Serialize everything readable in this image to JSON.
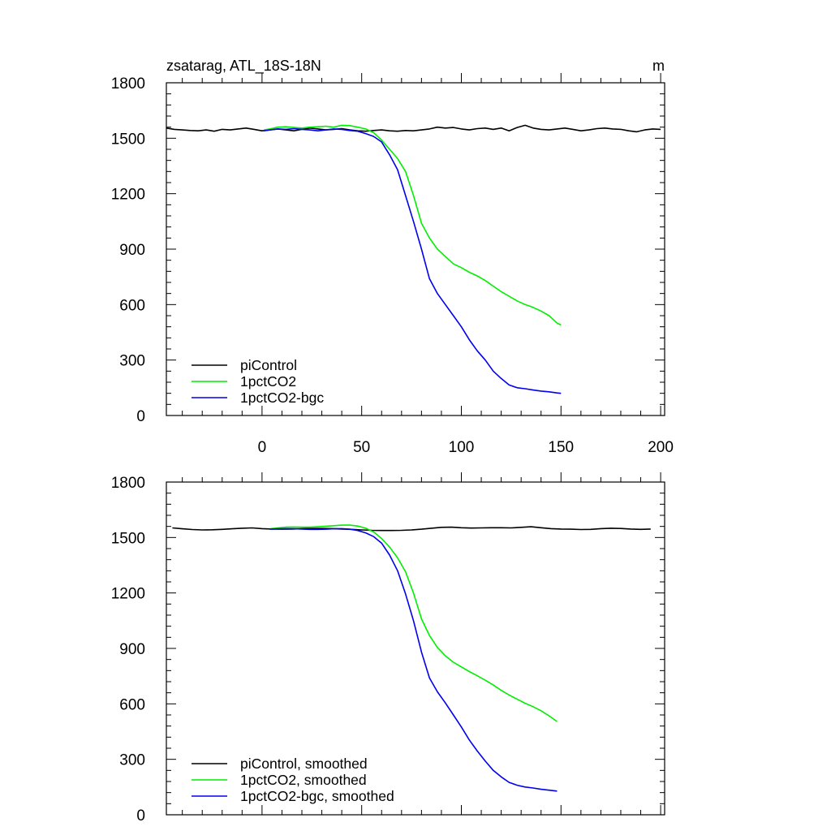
{
  "chart_data": [
    {
      "type": "line",
      "title": "zsatarag, ATL_18S-18N",
      "units": "m",
      "xlim": [
        -48,
        202
      ],
      "ylim": [
        0,
        1800
      ],
      "xticks": [
        0,
        50,
        100,
        150,
        200
      ],
      "xtick_labels": [
        "0",
        "50",
        "100",
        "150",
        "200"
      ],
      "yticks": [
        0,
        300,
        600,
        900,
        1200,
        1500,
        1800
      ],
      "ytick_labels": [
        "0",
        "300",
        "600",
        "900",
        "1200",
        "1500",
        "1800"
      ],
      "legend_position": "bottom-left",
      "series": [
        {
          "name": "piControl",
          "color": "#000000",
          "x": [
            -48,
            -44,
            -40,
            -36,
            -32,
            -28,
            -24,
            -20,
            -16,
            -12,
            -8,
            -4,
            0,
            4,
            8,
            12,
            16,
            20,
            24,
            28,
            32,
            36,
            40,
            44,
            48,
            52,
            56,
            60,
            64,
            68,
            72,
            76,
            80,
            84,
            88,
            92,
            96,
            100,
            104,
            108,
            112,
            116,
            120,
            124,
            128,
            132,
            136,
            140,
            144,
            148,
            152,
            156,
            160,
            164,
            168,
            172,
            176,
            180,
            184,
            188,
            192,
            196,
            200
          ],
          "y": [
            1555,
            1548,
            1545,
            1542,
            1540,
            1545,
            1538,
            1548,
            1545,
            1550,
            1555,
            1548,
            1540,
            1545,
            1550,
            1545,
            1540,
            1548,
            1555,
            1550,
            1545,
            1548,
            1552,
            1545,
            1540,
            1538,
            1542,
            1545,
            1540,
            1538,
            1542,
            1540,
            1545,
            1550,
            1560,
            1555,
            1558,
            1550,
            1545,
            1552,
            1555,
            1548,
            1555,
            1540,
            1558,
            1570,
            1555,
            1548,
            1545,
            1550,
            1555,
            1548,
            1540,
            1545,
            1552,
            1555,
            1550,
            1548,
            1540,
            1535,
            1545,
            1550,
            1548
          ]
        },
        {
          "name": "1pctCO2",
          "color": "#00ee00",
          "x": [
            1,
            4,
            8,
            12,
            16,
            20,
            24,
            28,
            32,
            36,
            40,
            44,
            48,
            52,
            56,
            60,
            64,
            68,
            72,
            76,
            80,
            84,
            88,
            92,
            96,
            100,
            104,
            108,
            112,
            116,
            120,
            124,
            128,
            132,
            136,
            140,
            144,
            148,
            150
          ],
          "y": [
            1545,
            1550,
            1560,
            1562,
            1558,
            1555,
            1560,
            1562,
            1565,
            1560,
            1570,
            1568,
            1560,
            1550,
            1530,
            1490,
            1440,
            1390,
            1320,
            1190,
            1040,
            960,
            900,
            860,
            820,
            800,
            775,
            755,
            730,
            700,
            670,
            645,
            620,
            600,
            585,
            565,
            540,
            500,
            490
          ]
        },
        {
          "name": "1pctCO2-bgc",
          "color": "#0000ee",
          "x": [
            1,
            4,
            8,
            12,
            16,
            20,
            24,
            28,
            32,
            36,
            40,
            44,
            48,
            52,
            56,
            60,
            64,
            68,
            72,
            76,
            80,
            84,
            88,
            92,
            96,
            100,
            104,
            108,
            112,
            116,
            120,
            124,
            128,
            132,
            136,
            140,
            144,
            148,
            150
          ],
          "y": [
            1540,
            1545,
            1550,
            1548,
            1552,
            1548,
            1545,
            1540,
            1545,
            1550,
            1548,
            1542,
            1538,
            1525,
            1510,
            1480,
            1410,
            1330,
            1190,
            1050,
            900,
            740,
            660,
            600,
            540,
            480,
            410,
            350,
            300,
            240,
            200,
            165,
            150,
            145,
            138,
            132,
            128,
            122,
            120
          ]
        }
      ]
    },
    {
      "type": "line",
      "title": "",
      "xlim": [
        -48,
        202
      ],
      "ylim": [
        0,
        1800
      ],
      "xticks": [
        0,
        50,
        100,
        150,
        200
      ],
      "yticks": [
        0,
        300,
        600,
        900,
        1200,
        1500,
        1800
      ],
      "ytick_labels": [
        "0",
        "300",
        "600",
        "900",
        "1200",
        "1500",
        "1800"
      ],
      "legend_position": "bottom-left",
      "series": [
        {
          "name": "piControl, smoothed",
          "color": "#000000",
          "x": [
            -45,
            -40,
            -35,
            -30,
            -25,
            -20,
            -15,
            -10,
            -5,
            0,
            5,
            10,
            15,
            20,
            25,
            30,
            35,
            40,
            45,
            50,
            55,
            60,
            65,
            70,
            75,
            80,
            85,
            90,
            95,
            100,
            105,
            110,
            115,
            120,
            125,
            130,
            135,
            140,
            145,
            150,
            155,
            160,
            165,
            170,
            175,
            180,
            185,
            190,
            195
          ],
          "y": [
            1552,
            1547,
            1543,
            1541,
            1542,
            1544,
            1547,
            1550,
            1552,
            1548,
            1546,
            1545,
            1546,
            1548,
            1549,
            1549,
            1548,
            1546,
            1544,
            1541,
            1539,
            1538,
            1538,
            1539,
            1541,
            1545,
            1550,
            1555,
            1556,
            1553,
            1551,
            1552,
            1553,
            1553,
            1552,
            1555,
            1558,
            1553,
            1548,
            1546,
            1545,
            1543,
            1544,
            1548,
            1550,
            1549,
            1546,
            1544,
            1546
          ]
        },
        {
          "name": "1pctCO2, smoothed",
          "color": "#00ee00",
          "x": [
            4,
            8,
            12,
            16,
            20,
            24,
            28,
            32,
            36,
            40,
            44,
            48,
            52,
            56,
            60,
            64,
            68,
            72,
            76,
            80,
            84,
            88,
            92,
            96,
            100,
            104,
            108,
            112,
            116,
            120,
            124,
            128,
            132,
            136,
            140,
            144,
            148
          ],
          "y": [
            1547,
            1552,
            1556,
            1557,
            1556,
            1556,
            1558,
            1561,
            1564,
            1567,
            1567,
            1562,
            1550,
            1530,
            1495,
            1448,
            1390,
            1315,
            1200,
            1060,
            970,
            905,
            860,
            825,
            800,
            775,
            752,
            728,
            702,
            673,
            648,
            625,
            603,
            585,
            563,
            535,
            505
          ]
        },
        {
          "name": "1pctCO2-bgc, smoothed",
          "color": "#0000ee",
          "x": [
            4,
            8,
            12,
            16,
            20,
            24,
            28,
            32,
            36,
            40,
            44,
            48,
            52,
            56,
            60,
            64,
            68,
            72,
            76,
            80,
            84,
            88,
            92,
            96,
            100,
            104,
            108,
            112,
            116,
            120,
            124,
            128,
            132,
            136,
            140,
            144,
            148
          ],
          "y": [
            1545,
            1547,
            1548,
            1547,
            1546,
            1544,
            1544,
            1545,
            1547,
            1548,
            1545,
            1538,
            1525,
            1505,
            1470,
            1405,
            1320,
            1195,
            1050,
            880,
            740,
            665,
            605,
            540,
            475,
            405,
            345,
            290,
            240,
            205,
            175,
            160,
            150,
            145,
            138,
            133,
            128
          ]
        }
      ]
    }
  ]
}
